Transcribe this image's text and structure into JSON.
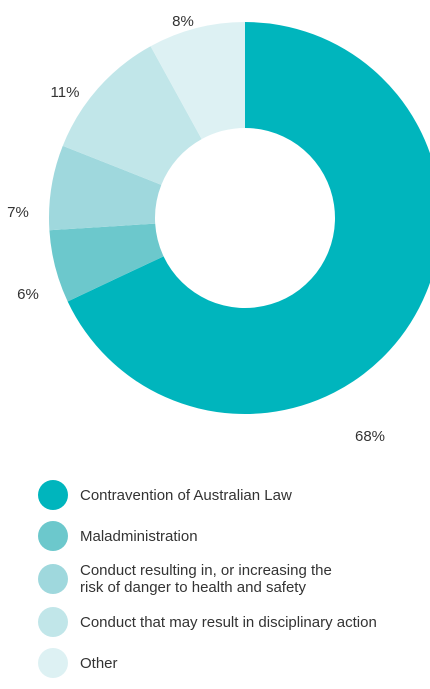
{
  "chart_data": {
    "type": "donut",
    "categories": [
      "Contravention of Australian Law",
      "Maladministration",
      "Conduct resulting in, or increasing the\nrisk of danger to health and safety",
      "Conduct that may result in disciplinary action",
      "Other"
    ],
    "values": [
      68,
      6,
      7,
      11,
      8
    ],
    "value_labels": [
      "68%",
      "6%",
      "7%",
      "11%",
      "8%"
    ],
    "colors": [
      "#00b5bd",
      "#6cc8cc",
      "#9fd8dd",
      "#c1e6e9",
      "#ddf1f3"
    ]
  }
}
